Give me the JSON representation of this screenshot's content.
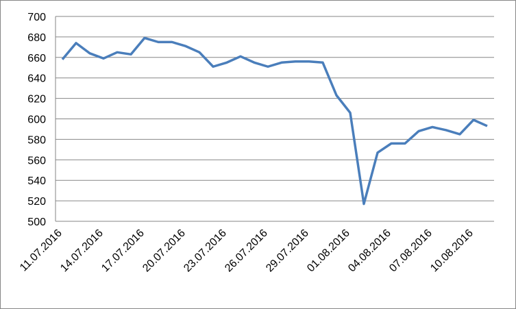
{
  "chart_data": {
    "type": "line",
    "categories": [
      "11.07.2016",
      null,
      null,
      "14.07.2016",
      null,
      null,
      "17.07.2016",
      null,
      null,
      "20.07.2016",
      null,
      null,
      "23.07.2016",
      null,
      null,
      "26.07.2016",
      null,
      null,
      "29.07.2016",
      null,
      null,
      "01.08.2016",
      null,
      null,
      "04.08.2016",
      null,
      null,
      "07.08.2016",
      null,
      null,
      "10.08.2016",
      null
    ],
    "values": [
      658,
      674,
      664,
      659,
      665,
      663,
      679,
      675,
      675,
      671,
      665,
      651,
      655,
      661,
      655,
      651,
      655,
      656,
      656,
      655,
      623,
      606,
      517,
      567,
      576,
      576,
      588,
      592,
      589,
      585,
      599,
      593
    ],
    "color": "#4a7ebb",
    "ylim": [
      500,
      700
    ],
    "yticks": [
      500,
      520,
      540,
      560,
      580,
      600,
      620,
      640,
      660,
      680,
      700
    ],
    "grid": true
  }
}
